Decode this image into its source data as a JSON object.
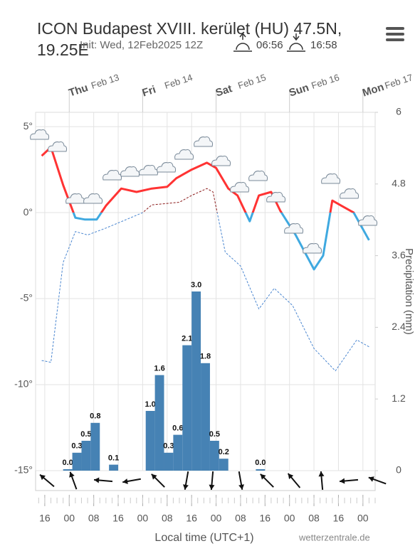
{
  "chart_data": {
    "type": "line",
    "title": "ICON Budapest XVIII. kerület (HU) 47.5N, 19.25E",
    "subtitle": "Init: Wed, 12Feb2025 12Z",
    "sunrise": "06:56",
    "sunset": "16:58",
    "x_label": "Local time (UTC+1)",
    "y2_label": "Precipitation (mm)",
    "credit": "wetterzentrale.de",
    "xlim": [
      13,
      124
    ],
    "xticks": [
      {
        "value": 16,
        "label": "16"
      },
      {
        "value": 24,
        "label": "00"
      },
      {
        "value": 32,
        "label": "08"
      },
      {
        "value": 40,
        "label": "16"
      },
      {
        "value": 48,
        "label": "00"
      },
      {
        "value": 56,
        "label": "08"
      },
      {
        "value": 64,
        "label": "16"
      },
      {
        "value": 72,
        "label": "00"
      },
      {
        "value": 80,
        "label": "08"
      },
      {
        "value": 88,
        "label": "16"
      },
      {
        "value": 96,
        "label": "00"
      },
      {
        "value": 104,
        "label": "08"
      },
      {
        "value": 112,
        "label": "16"
      },
      {
        "value": 120,
        "label": "00"
      }
    ],
    "x2ticks": [
      {
        "value": 24,
        "day": "Thu",
        "date": "Feb 13"
      },
      {
        "value": 48,
        "day": "Fri",
        "date": "Feb 14"
      },
      {
        "value": 72,
        "day": "Sat",
        "date": "Feb 15"
      },
      {
        "value": 96,
        "day": "Sun",
        "date": "Feb 16"
      },
      {
        "value": 120,
        "day": "Mon",
        "date": "Feb 17"
      }
    ],
    "ylim": [
      -15,
      5.83
    ],
    "yticks": [
      {
        "value": 5,
        "label": "5°"
      },
      {
        "value": 0,
        "label": "0°"
      },
      {
        "value": -5,
        "label": "-5°"
      },
      {
        "value": -10,
        "label": "-10°"
      },
      {
        "value": -15,
        "label": "-15°"
      }
    ],
    "y2lim": [
      0,
      6
    ],
    "y2ticks": [
      0,
      1.2,
      2.4,
      3.6,
      4.8,
      6
    ],
    "grid": true,
    "series": [
      {
        "type": "line",
        "color": "#ff3333",
        "color_below": "#3fa9e0",
        "dashed": false,
        "x": [
          15,
          18,
          22,
          26,
          29,
          33,
          36,
          41,
          46,
          51,
          56,
          59,
          64,
          69,
          72,
          76,
          79,
          83,
          86,
          90,
          93,
          98,
          104,
          107,
          110,
          113,
          117,
          122
        ],
        "values": [
          3.3,
          3.8,
          1.6,
          -0.3,
          -0.4,
          -0.4,
          0.4,
          1.4,
          1.2,
          1.4,
          1.5,
          2.0,
          2.5,
          2.9,
          2.6,
          1.4,
          1.0,
          -0.5,
          1.0,
          1.2,
          0.1,
          -1.3,
          -3.3,
          -2.5,
          0.7,
          0.4,
          0,
          -1.6
        ]
      },
      {
        "type": "line",
        "color": "#8b1a1a",
        "color_below": "#4a86d0",
        "dashed": true,
        "x": [
          15,
          18,
          22,
          26,
          30,
          36,
          42,
          48,
          51,
          60,
          64,
          69,
          71,
          75,
          80,
          86,
          91,
          97,
          104,
          111,
          118,
          122
        ],
        "values": [
          -8.6,
          -8.7,
          -2.9,
          -1.1,
          -1.3,
          -0.9,
          -0.45,
          0,
          0.45,
          0.6,
          1.0,
          1.4,
          1.2,
          -2.3,
          -3.1,
          -5.6,
          -4.4,
          -5.4,
          -7.9,
          -9.2,
          -7.4,
          -7.8
        ]
      },
      {
        "type": "bar",
        "axis": "y2",
        "color": "#4682b4",
        "x": [
          23.5,
          26.5,
          29.5,
          32.5,
          38.5,
          50.5,
          53.5,
          56.5,
          59.5,
          62.5,
          65.5,
          68.5,
          71.5,
          74.5,
          86.5
        ],
        "values": [
          0.0,
          0.3,
          0.5,
          0.8,
          0.1,
          1.0,
          1.6,
          0.3,
          0.6,
          2.1,
          3.0,
          1.8,
          0.5,
          0.2,
          0.0
        ],
        "value_labels": [
          "0.0",
          "0.3",
          "0.5",
          "0.8",
          "0.1",
          "1.0",
          "1.6",
          "0.3",
          "0.6",
          "2.1",
          "3.0",
          "1.8",
          "0.5",
          "0.2",
          "0.0"
        ]
      }
    ]
  }
}
